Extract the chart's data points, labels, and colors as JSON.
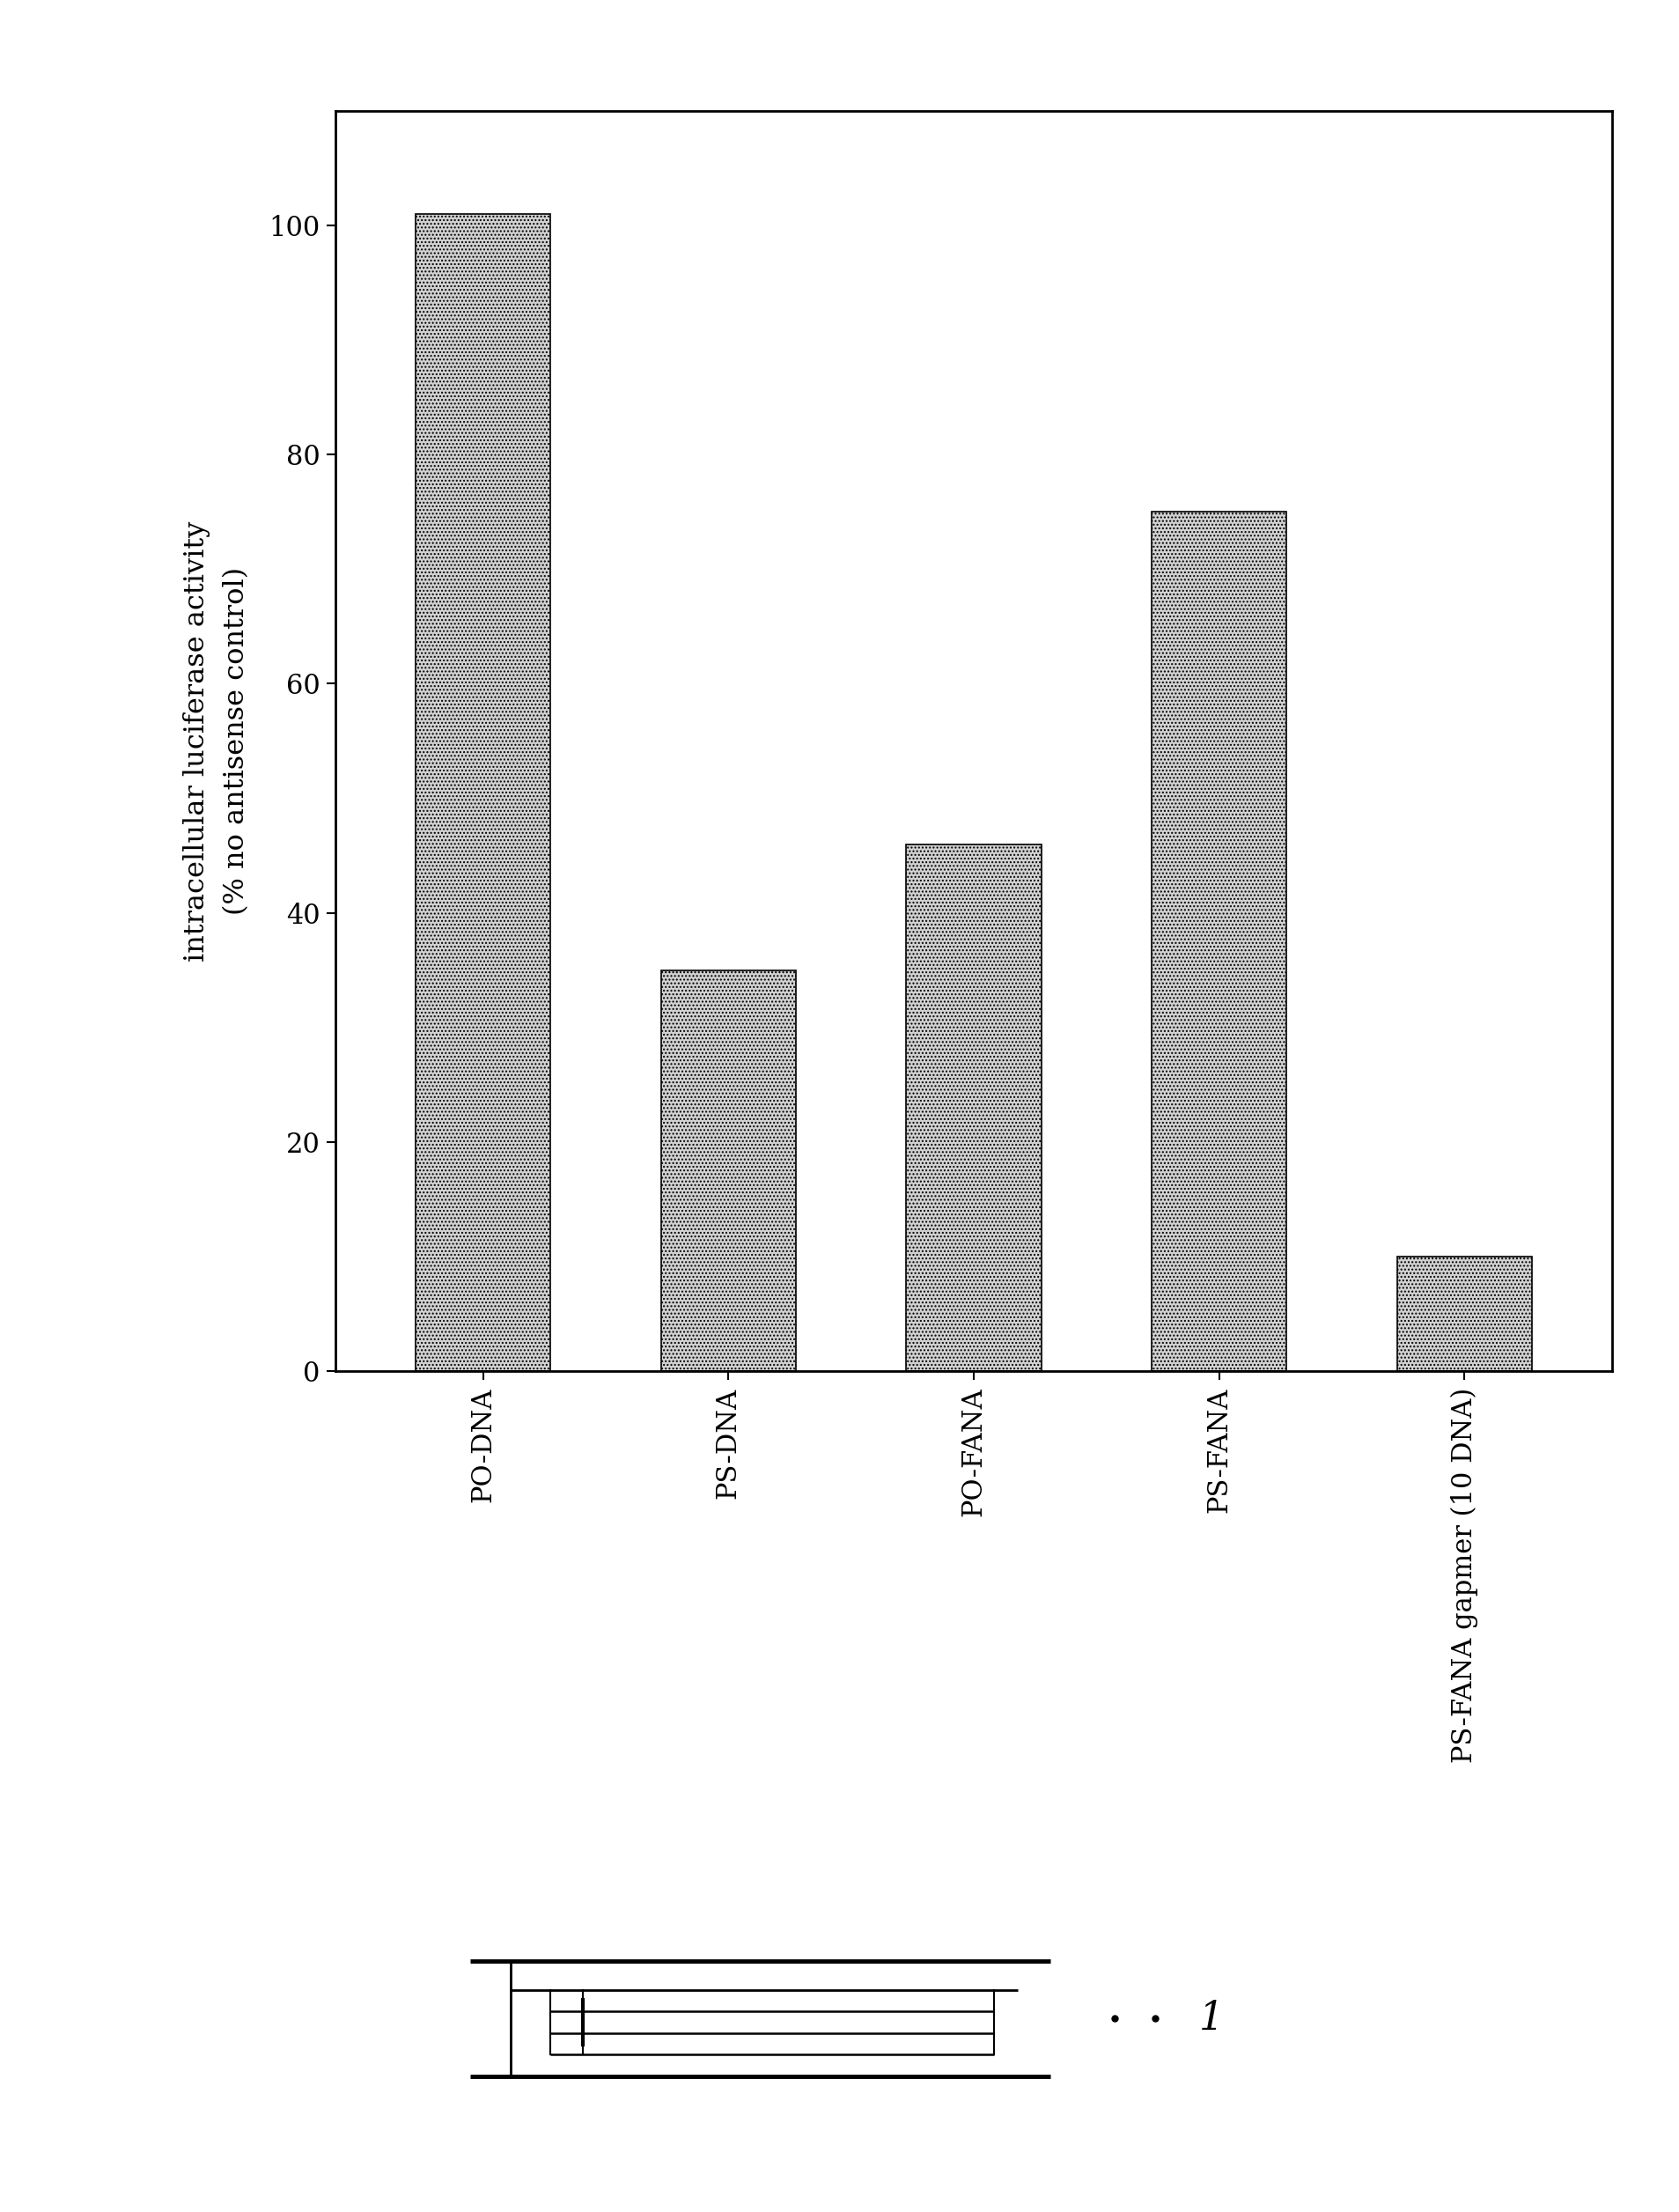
{
  "categories": [
    "PO-DNA",
    "PS-DNA",
    "PO-FANA",
    "PS-FANA",
    "PS-FANA gapmer (10 DNA)"
  ],
  "values": [
    101,
    35,
    46,
    75,
    10
  ],
  "bar_color": "#d2d2d2",
  "hatch": "....",
  "ylabel_line1": "intracellular luciferase activity",
  "ylabel_line2": "(% no antisense control)",
  "ylim": [
    0,
    110
  ],
  "yticks": [
    0,
    20,
    40,
    60,
    80,
    100
  ],
  "background_color": "#ffffff",
  "bar_width": 0.55,
  "tick_fontsize": 22,
  "label_fontsize": 23,
  "figure_label": "1"
}
